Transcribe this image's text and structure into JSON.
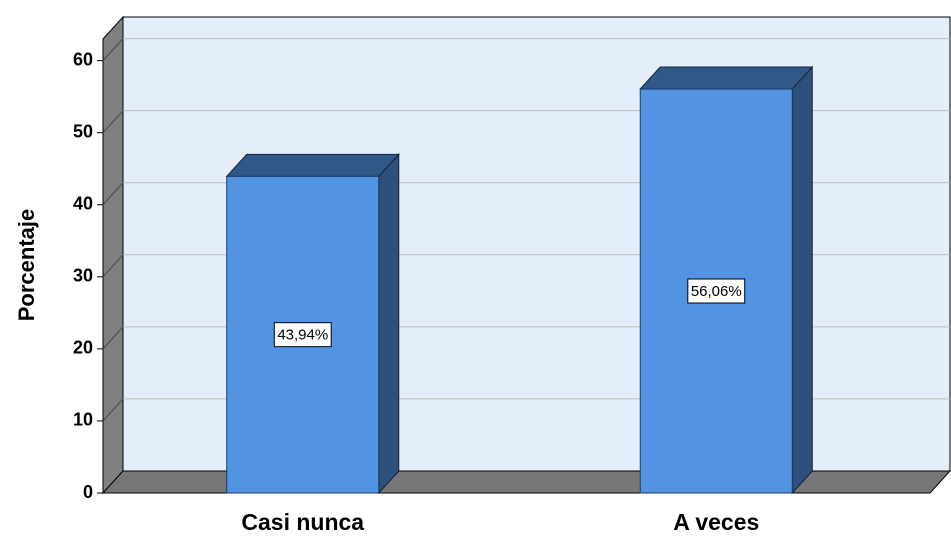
{
  "chart_data": {
    "type": "bar",
    "y_axis_label": "Porcentaje",
    "categories": [
      "Casi nunca",
      "A veces"
    ],
    "values": [
      43.94,
      56.06
    ],
    "value_labels": [
      "43,94%",
      "56,06%"
    ],
    "color": "#5294e2",
    "ylim": [
      0,
      63
    ],
    "yticks": [
      0,
      10,
      20,
      30,
      40,
      50,
      60
    ],
    "grid": true
  }
}
